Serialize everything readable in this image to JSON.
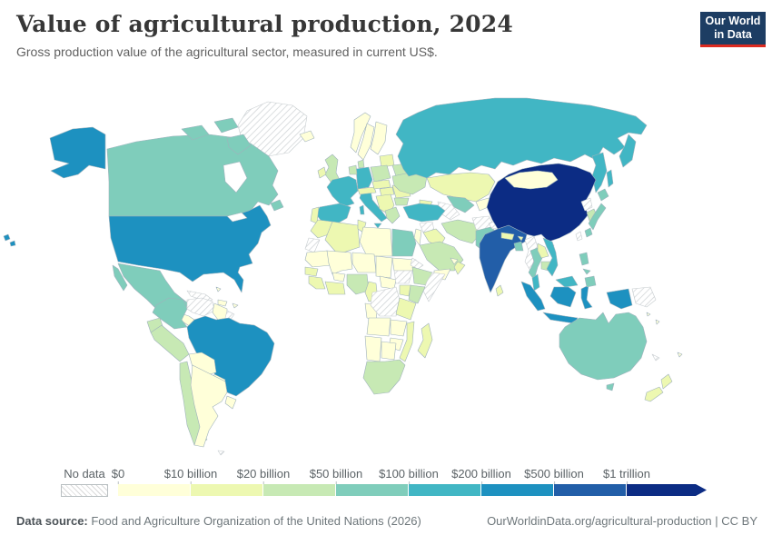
{
  "header": {
    "title": "Value of agricultural production, 2024",
    "subtitle": "Gross production value of the agricultural sector, measured in current US$.",
    "logo": {
      "line1": "Our World",
      "line2": "in Data",
      "bg": "#1d3d63",
      "accent": "#dc2a20"
    }
  },
  "legend": {
    "no_data_label": "No data",
    "tick_labels": [
      "$0",
      "$10 billion",
      "$20 billion",
      "$50 billion",
      "$100 billion",
      "$200 billion",
      "$500 billion",
      "$1 trillion"
    ],
    "bins": [
      {
        "range": "$0–10 billion",
        "color": "#ffffd9"
      },
      {
        "range": "$10–20 billion",
        "color": "#edf8b1"
      },
      {
        "range": "$20–50 billion",
        "color": "#c7e9b4"
      },
      {
        "range": "$50–100 billion",
        "color": "#7fcdbb"
      },
      {
        "range": "$100–200 billion",
        "color": "#41b6c4"
      },
      {
        "range": "$200–500 billion",
        "color": "#1d91c0"
      },
      {
        "range": "$500 billion–1 trillion",
        "color": "#225ea8"
      },
      {
        "range": "over $1 trillion",
        "color": "#0c2c84"
      }
    ]
  },
  "footer": {
    "source_prefix": "Data source:",
    "source_text": " Food and Agriculture Organization of the United Nations (2026)",
    "right_text": "OurWorldinData.org/agricultural-production | CC BY"
  },
  "chart_data": {
    "type": "choropleth",
    "title": "Value of agricultural production, 2024",
    "subtitle": "Gross production value of the agricultural sector, measured in current US$.",
    "unit": "current US$",
    "legend_bins": [
      {
        "range": "$0–10 billion",
        "color": "#ffffd9"
      },
      {
        "range": "$10–20 billion",
        "color": "#edf8b1"
      },
      {
        "range": "$20–50 billion",
        "color": "#c7e9b4"
      },
      {
        "range": "$50–100 billion",
        "color": "#7fcdbb"
      },
      {
        "range": "$100–200 billion",
        "color": "#41b6c4"
      },
      {
        "range": "$200–500 billion",
        "color": "#1d91c0"
      },
      {
        "range": "$500 billion–1 trillion",
        "color": "#225ea8"
      },
      {
        "range": "over $1 trillion",
        "color": "#0c2c84"
      }
    ],
    "no_data_style": "grey diagonal hatch",
    "countries": {
      "China": "over $1 trillion",
      "India": "$500 billion–1 trillion",
      "United States": "$200–500 billion",
      "Brazil": "$200–500 billion",
      "Indonesia": "$200–500 billion",
      "Russia": "$100–200 billion",
      "France": "$100–200 billion",
      "Spain": "$100–200 billion",
      "Germany": "$100–200 billion",
      "Italy": "$100–200 billion",
      "Turkey": "$100–200 billion",
      "Vietnam": "$100–200 billion",
      "Malaysia": "$100–200 billion",
      "Canada": "$50–100 billion",
      "Mexico": "$50–100 billion",
      "Colombia": "$50–100 billion",
      "Australia": "$50–100 billion",
      "Japan": "$50–100 billion",
      "Pakistan": "$50–100 billion",
      "Egypt": "$50–100 billion",
      "Thailand": "$50–100 billion",
      "Philippines": "$50–100 billion",
      "Bangladesh": "$50–100 billion",
      "Uzbekistan": "$50–100 billion",
      "United Kingdom": "$20–50 billion",
      "Poland": "$20–50 billion",
      "Ukraine": "$20–50 billion",
      "Belarus": "$20–50 billion",
      "Netherlands": "$20–50 billion",
      "Denmark": "$20–50 billion",
      "Greece": "$20–50 billion",
      "Iran": "$20–50 billion",
      "Saudi Arabia": "$20–50 billion",
      "South Korea": "$20–50 billion",
      "Peru": "$20–50 billion",
      "Ecuador": "$20–50 billion",
      "Chile": "$20–50 billion",
      "Nigeria": "$20–50 billion",
      "Ethiopia": "$20–50 billion",
      "Kenya": "$20–50 billion",
      "South Africa": "$20–50 billion",
      "Cambodia": "$20–50 billion",
      "Kazakhstan": "$10–20 billion",
      "Morocco": "$10–20 billion",
      "Algeria": "$10–20 billion",
      "Ireland": "$10–20 billion",
      "Portugal": "$10–20 billion",
      "Romania": "$10–20 billion",
      "Hungary": "$10–20 billion",
      "Tanzania": "$10–20 billion",
      "Mozambique": "$10–20 billion",
      "Madagascar": "$10–20 billion",
      "Ghana": "$10–20 billion",
      "New Zealand": "$10–20 billion",
      "Sri Lanka": "$10–20 billion",
      "Nepal": "$10–20 billion",
      "Iraq": "$10–20 billion",
      "Norway": "$0–10 billion",
      "Sweden": "$0–10 billion",
      "Finland": "$0–10 billion",
      "Iceland": "$0–10 billion",
      "Mongolia": "$0–10 billion",
      "Argentina": "$0–10 billion",
      "Bolivia": "$0–10 billion",
      "Paraguay": "$0–10 billion",
      "Uruguay": "$0–10 billion",
      "Libya": "$0–10 billion",
      "Mali": "$0–10 billion",
      "Niger": "$0–10 billion",
      "Chad": "$0–10 billion",
      "Sudan": "$0–10 billion",
      "Angola": "$0–10 billion",
      "Zambia": "$0–10 billion",
      "Namibia": "$0–10 billion",
      "Botswana": "$0–10 billion",
      "Yemen": "$0–10 billion",
      "Greenland": "No data",
      "Venezuela": "No data",
      "Cuba": "No data",
      "French Guiana": "No data",
      "Western Sahara": "No data",
      "DR Congo": "No data",
      "South Sudan": "No data",
      "Somalia": "No data",
      "Eritrea": "No data",
      "Syria": "No data",
      "Afghanistan": "No data",
      "Turkmenistan": "No data",
      "Myanmar": "No data",
      "North Korea": "No data",
      "Taiwan": "No data",
      "Papua New Guinea": "No data",
      "New Caledonia": "No data"
    }
  },
  "map": {
    "palette": {
      "b1": "#ffffd9",
      "b2": "#edf8b1",
      "b3": "#c7e9b4",
      "b4": "#7fcdbb",
      "b5": "#41b6c4",
      "b6": "#1d91c0",
      "b7": "#225ea8",
      "b8": "#0c2c84"
    },
    "fills": {
      "greenland": "nodata",
      "canada": "b4",
      "alaska": "b6",
      "usa": "b6",
      "hawaii": "b6",
      "mexico": "b4",
      "guatemala": "b2",
      "central-america": "b1",
      "cuba": "nodata",
      "hispaniola": "b1",
      "jamaica": "b1",
      "puerto-rico": "b1",
      "bahamas": "b1",
      "colombia": "b4",
      "venezuela": "nodata",
      "guyana-suriname": "b1",
      "french-guiana": "nodata",
      "brazil": "b6",
      "ecuador": "b3",
      "peru": "b3",
      "bolivia": "b1",
      "paraguay": "b1",
      "chile": "b3",
      "argentina": "b1",
      "uruguay": "b1",
      "falklands": "nodata",
      "iceland": "b1",
      "uk": "b3",
      "ireland": "b2",
      "norway": "b1",
      "sweden": "b1",
      "finland": "b1",
      "denmark": "b3",
      "baltics": "b2",
      "belarus": "b3",
      "poland": "b3",
      "germany": "b5",
      "benelux": "b3",
      "france": "b5",
      "spain": "b5",
      "portugal": "b2",
      "italy": "b5",
      "switzerland-austria": "b2",
      "czechia-slovakia": "b2",
      "hungary": "b2",
      "balkans": "b2",
      "romania": "b2",
      "bulgaria": "b3",
      "greece": "b3",
      "ukraine": "b3",
      "russia": "b5",
      "kazakhstan": "b2",
      "uzbekistan": "b4",
      "turkmenistan": "nodata",
      "kyrgyzstan-tajikistan": "b1",
      "caucasus": "b2",
      "turkey": "b5",
      "syria": "nodata",
      "iraq": "b2",
      "israel-jordan": "b1",
      "saudi-arabia": "b3",
      "yemen": "b1",
      "oman": "b2",
      "uae-qatar": "b1",
      "iran": "b3",
      "afghanistan": "nodata",
      "pakistan": "b4",
      "kashmir": "nodata",
      "india": "b7",
      "nepal": "b2",
      "bhutan": "b2",
      "bangladesh": "b4",
      "sri-lanka": "b2",
      "myanmar": "nodata",
      "china": "b8",
      "mongolia": "b1",
      "north-korea": "nodata",
      "south-korea": "b3",
      "japan": "b4",
      "taiwan": "nodata",
      "thailand": "b4",
      "laos": "b2",
      "cambodia": "b3",
      "vietnam": "b5",
      "malaysia": "b5",
      "indonesia": "b6",
      "philippines": "b4",
      "papua-new-guinea": "nodata",
      "australia": "b4",
      "new-zealand": "b2",
      "new-caledonia": "nodata",
      "fiji": "b1",
      "vanuatu": "b1",
      "solomon-islands": "b1",
      "morocco": "b2",
      "western-sahara": "nodata",
      "algeria": "b2",
      "tunisia": "b2",
      "libya": "b1",
      "egypt": "b4",
      "mauritania": "b1",
      "mali": "b1",
      "senegal": "b2",
      "guinea": "b2",
      "burkina-faso": "b1",
      "ghana-ivory-coast": "b2",
      "niger": "b1",
      "chad": "b1",
      "nigeria": "b3",
      "cameroon": "b2",
      "gabon-congo": "b1",
      "central-african-republic": "b1",
      "sudan": "b1",
      "south-sudan": "nodata",
      "eritrea": "nodata",
      "ethiopia": "b3",
      "somalia": "nodata",
      "kenya": "b3",
      "uganda": "b2",
      "drc": "nodata",
      "tanzania": "b2",
      "angola": "b1",
      "zambia": "b1",
      "mozambique": "b2",
      "zimbabwe": "b1",
      "madagascar": "b2",
      "namibia": "b1",
      "botswana": "b1",
      "south-africa": "b3"
    }
  }
}
